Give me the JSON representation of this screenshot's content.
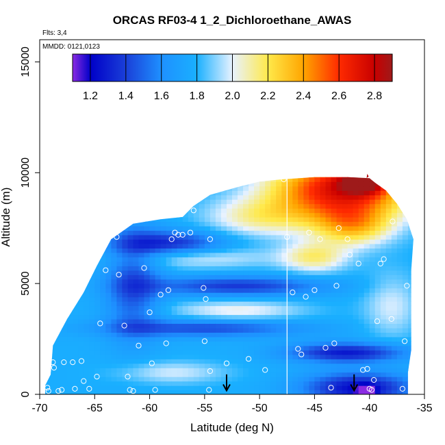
{
  "chart_data": {
    "type": "heatmap",
    "title": "ORCAS RF03-4 1_2_Dichloroethane_AWAS",
    "flights_note": "Flts: 3,4",
    "dates_note": "MMDD: 0121,0123",
    "xlabel": "Latitude (deg N)",
    "ylabel": "Altitude (m)",
    "xlim": [
      -70,
      -35
    ],
    "ylim": [
      0,
      16000
    ],
    "x_ticks": [
      -70,
      -65,
      -60,
      -55,
      -50,
      -45,
      -40,
      -35
    ],
    "y_ticks": [
      0,
      5000,
      10000,
      15000
    ],
    "colorbar": {
      "range": [
        1.1,
        2.9
      ],
      "ticks": [
        1.2,
        1.4,
        1.6,
        1.8,
        2.0,
        2.2,
        2.4,
        2.6,
        2.8
      ],
      "tick_labels": [
        "1.2",
        "1.4",
        "1.6",
        "1.8",
        "2.0",
        "2.2",
        "2.4",
        "2.6",
        "2.8"
      ],
      "stops": [
        {
          "v": 1.1,
          "c": "#8a2be2"
        },
        {
          "v": 1.2,
          "c": "#0000c8"
        },
        {
          "v": 1.4,
          "c": "#1a3fd8"
        },
        {
          "v": 1.6,
          "c": "#1e90ff"
        },
        {
          "v": 1.8,
          "c": "#1ab0ff"
        },
        {
          "v": 2.0,
          "c": "#e8f2ff"
        },
        {
          "v": 2.2,
          "c": "#ffe94a"
        },
        {
          "v": 2.4,
          "c": "#ffa500"
        },
        {
          "v": 2.6,
          "c": "#ff2a00"
        },
        {
          "v": 2.8,
          "c": "#c80000"
        },
        {
          "v": 2.9,
          "c": "#9e1a1a"
        }
      ]
    },
    "sample_points": [
      [
        -69.3,
        300
      ],
      [
        -69.2,
        150
      ],
      [
        -68.8,
        1450
      ],
      [
        -68.7,
        1200
      ],
      [
        -68.3,
        150
      ],
      [
        -68.0,
        200
      ],
      [
        -67.8,
        1450
      ],
      [
        -67.0,
        1450
      ],
      [
        -66.8,
        250
      ],
      [
        -66.2,
        1500
      ],
      [
        -66.0,
        600
      ],
      [
        -65.5,
        250
      ],
      [
        -64.8,
        800
      ],
      [
        -64.5,
        3200
      ],
      [
        -64.0,
        5600
      ],
      [
        -63.0,
        7100
      ],
      [
        -62.8,
        5400
      ],
      [
        -62.3,
        3100
      ],
      [
        -62.0,
        800
      ],
      [
        -61.8,
        200
      ],
      [
        -61.5,
        150
      ],
      [
        -61.0,
        2200
      ],
      [
        -60.5,
        5700
      ],
      [
        -60.0,
        3700
      ],
      [
        -59.8,
        1400
      ],
      [
        -59.5,
        200
      ],
      [
        -59.0,
        4500
      ],
      [
        -58.5,
        2300
      ],
      [
        -58.3,
        4700
      ],
      [
        -58.0,
        7000
      ],
      [
        -57.7,
        7300
      ],
      [
        -57.4,
        7200
      ],
      [
        -57.0,
        7200
      ],
      [
        -56.3,
        7300
      ],
      [
        -56.0,
        8300
      ],
      [
        -55.0,
        2400
      ],
      [
        -54.9,
        4300
      ],
      [
        -55.1,
        4800
      ],
      [
        -54.5,
        7000
      ],
      [
        -54.5,
        1050
      ],
      [
        -54.6,
        200
      ],
      [
        -47.8,
        9700
      ],
      [
        -47.5,
        7100
      ],
      [
        -47.0,
        4600
      ],
      [
        -46.5,
        2050
      ],
      [
        -46.2,
        1800
      ],
      [
        -45.8,
        4400
      ],
      [
        -45.5,
        7300
      ],
      [
        -45.0,
        4700
      ],
      [
        -44.5,
        7000
      ],
      [
        -44.0,
        2100
      ],
      [
        -43.5,
        300
      ],
      [
        -43.2,
        2300
      ],
      [
        -43.0,
        4900
      ],
      [
        -42.8,
        7500
      ],
      [
        -42.0,
        7000
      ],
      [
        -41.8,
        6300
      ],
      [
        -41.0,
        5900
      ],
      [
        -40.6,
        1100
      ],
      [
        -40.2,
        1150
      ],
      [
        -40.0,
        250
      ],
      [
        -39.6,
        650
      ],
      [
        -39.3,
        3300
      ],
      [
        -39.0,
        5900
      ],
      [
        -38.7,
        6100
      ],
      [
        -38.0,
        3400
      ],
      [
        -37.9,
        7800
      ],
      [
        -37.0,
        250
      ],
      [
        -36.8,
        2400
      ],
      [
        -36.6,
        4900
      ],
      [
        -36.0,
        7500
      ],
      [
        -39.8,
        200
      ],
      [
        -49.5,
        1100
      ],
      [
        -51.0,
        1600
      ],
      [
        -53.0,
        1400
      ]
    ],
    "vertical_line_lat": -47.5,
    "arrows": [
      {
        "lat": -53.0,
        "alt": 200
      },
      {
        "lat": -41.4,
        "alt": 200
      }
    ]
  }
}
